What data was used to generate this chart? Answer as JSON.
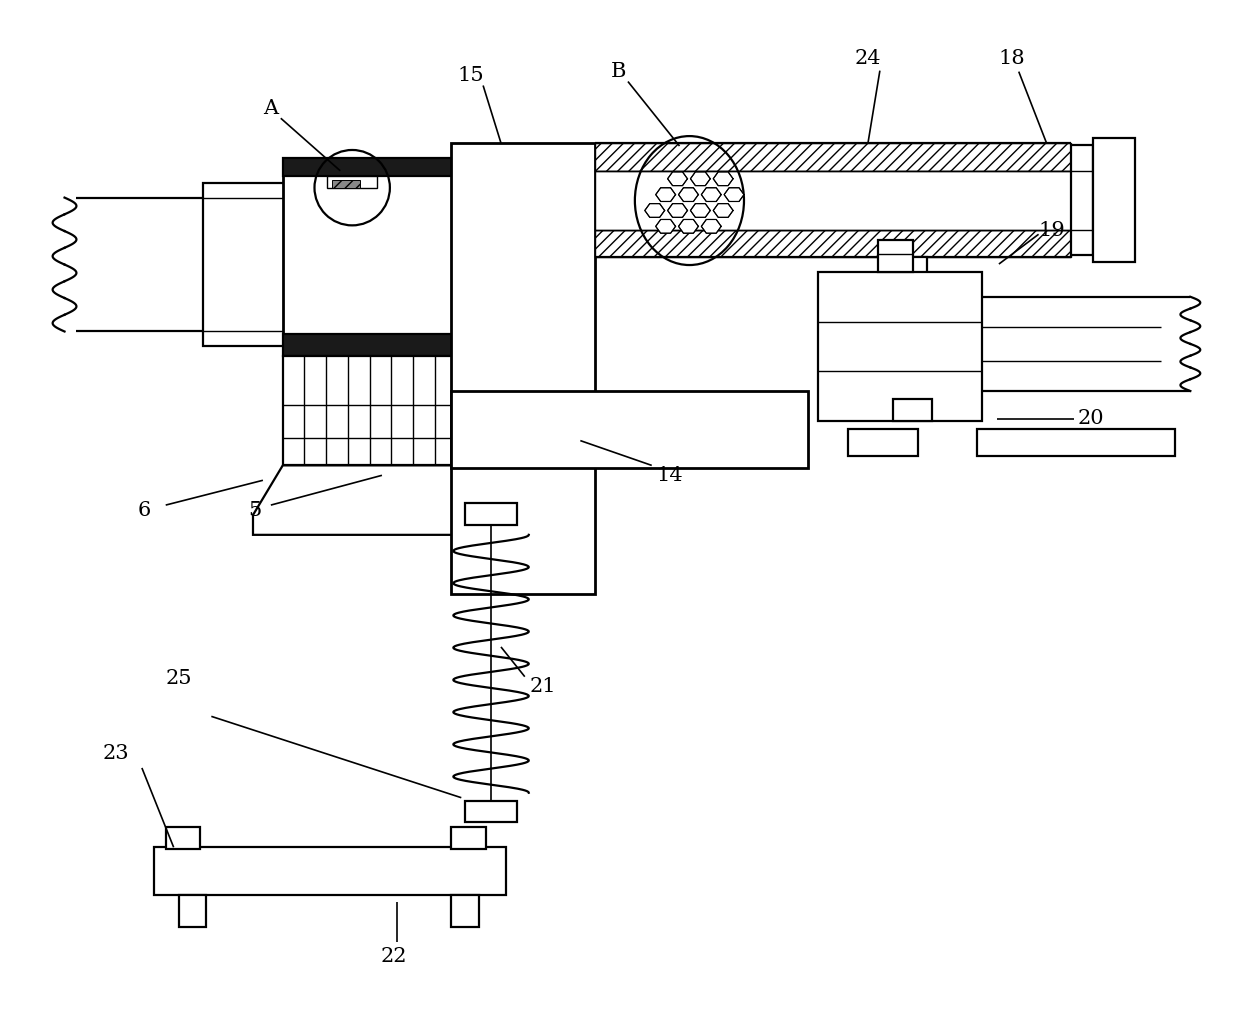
{
  "bg_color": "#ffffff",
  "lw": 1.6,
  "lwt": 1.0,
  "lwk": 2.0,
  "fig_w": 12.4,
  "fig_h": 10.3,
  "dpi": 100
}
